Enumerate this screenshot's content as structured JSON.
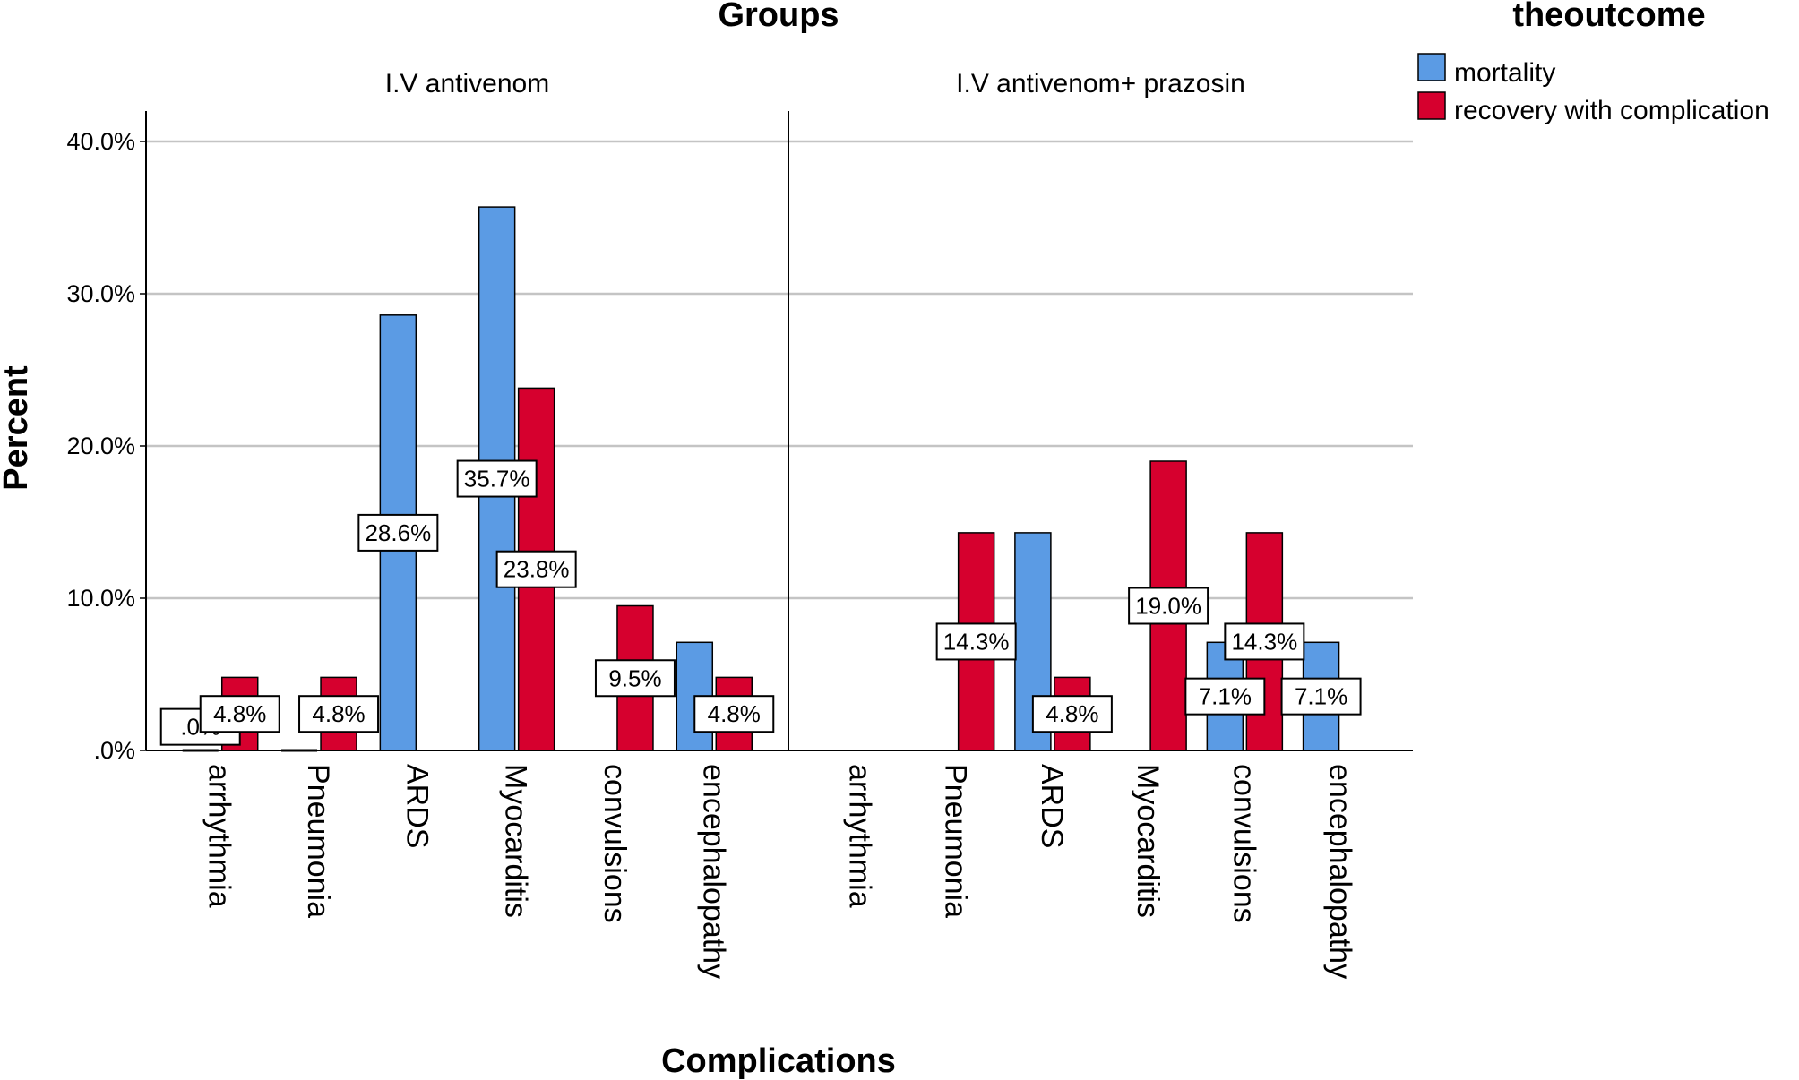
{
  "chart_data": {
    "type": "bar",
    "title": "",
    "panel_title": "Groups",
    "xlabel": "Complications",
    "ylabel": "Percent",
    "ylim": [
      0,
      42
    ],
    "yticks": [
      0,
      10,
      20,
      30,
      40
    ],
    "ytick_labels": [
      ".0%",
      "10.0%",
      "20.0%",
      "30.0%",
      "40.0%"
    ],
    "grid": true,
    "legend": {
      "title": "theoutcome",
      "placement": "top-right",
      "entries": [
        "mortality",
        "recovery with complication"
      ]
    },
    "colors": {
      "mortality": "#5b9be4",
      "recovery with complication": "#d6002e"
    },
    "categories": [
      "arrhythmia",
      "Pneumonia",
      "ARDS",
      "Myocarditis",
      "convulsions",
      "encephalopathy"
    ],
    "panels": [
      {
        "name": "I.V antivenom",
        "series": [
          {
            "name": "mortality",
            "values": [
              0,
              0,
              28.6,
              35.7,
              null,
              7.1
            ]
          },
          {
            "name": "recovery with complication",
            "values": [
              4.8,
              4.8,
              null,
              23.8,
              9.5,
              4.8
            ]
          }
        ],
        "data_labels": [
          {
            "category": "arrhythmia",
            "series": "mortality",
            "text": ".0%"
          },
          {
            "category": "arrhythmia",
            "series": "recovery with complication",
            "text": "4.8%"
          },
          {
            "category": "Pneumonia",
            "series": "recovery with complication",
            "text": "4.8%"
          },
          {
            "category": "ARDS",
            "series": "mortality",
            "text": "28.6%"
          },
          {
            "category": "Myocarditis",
            "series": "mortality",
            "text": "35.7%"
          },
          {
            "category": "Myocarditis",
            "series": "recovery with complication",
            "text": "23.8%"
          },
          {
            "category": "convulsions",
            "series": "recovery with complication",
            "text": "9.5%"
          },
          {
            "category": "encephalopathy",
            "series": "recovery with complication",
            "text": "4.8%"
          }
        ]
      },
      {
        "name": "I.V antivenom+ prazosin",
        "series": [
          {
            "name": "mortality",
            "values": [
              null,
              null,
              14.3,
              null,
              7.1,
              7.1
            ]
          },
          {
            "name": "recovery with complication",
            "values": [
              null,
              14.3,
              4.8,
              19.0,
              14.3,
              null
            ]
          }
        ],
        "data_labels": [
          {
            "category": "Pneumonia",
            "series": "recovery with complication",
            "text": "14.3%"
          },
          {
            "category": "ARDS",
            "series": "recovery with complication",
            "text": "4.8%"
          },
          {
            "category": "Myocarditis",
            "series": "recovery with complication",
            "text": "19.0%"
          },
          {
            "category": "convulsions",
            "series": "recovery with complication",
            "text": "14.3%"
          },
          {
            "category": "convulsions",
            "series": "mortality",
            "text": "7.1%"
          },
          {
            "category": "encephalopathy",
            "series": "mortality",
            "text": "7.1%"
          }
        ]
      }
    ]
  }
}
